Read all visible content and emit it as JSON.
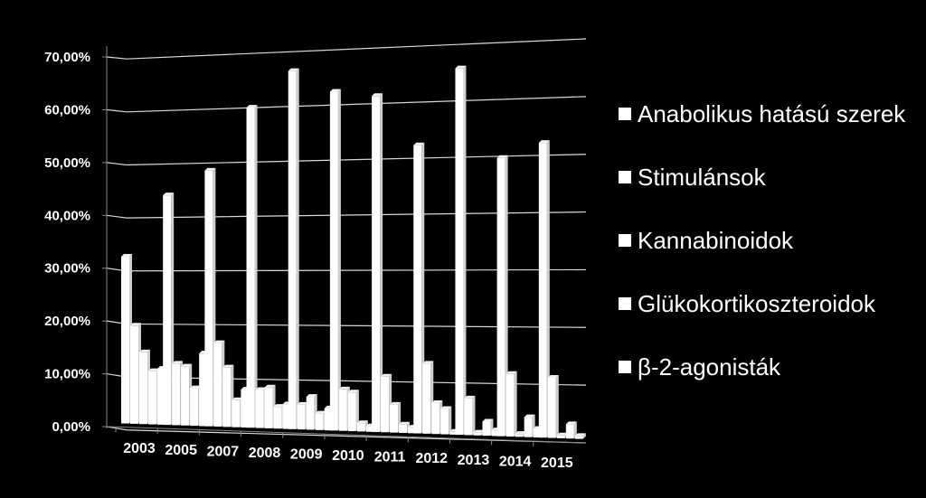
{
  "chart_data": {
    "type": "bar",
    "title": "",
    "xlabel": "",
    "ylabel": "",
    "ylim": [
      0,
      70
    ],
    "y_ticks": [
      "0,00%",
      "10,00%",
      "20,00%",
      "30,00%",
      "40,00%",
      "50,00%",
      "60,00%",
      "70,00%"
    ],
    "categories": [
      "2003",
      "2005",
      "2007",
      "2008",
      "2009",
      "2010",
      "2011",
      "2012",
      "2013",
      "2014",
      "2015"
    ],
    "grid": true,
    "legend_position": "right",
    "bar_color": "#ffffff",
    "background_color": "#000000",
    "series": [
      {
        "name": "Anabolikus hatású szerek",
        "values": [
          31.5,
          43.0,
          47.5,
          59.0,
          65.5,
          61.5,
          60.5,
          51.5,
          65.0,
          49.0,
          51.5
        ]
      },
      {
        "name": "Stimulánsok",
        "values": [
          18.5,
          11.5,
          15.5,
          7.0,
          4.5,
          7.5,
          10.0,
          12.5,
          6.5,
          11.0,
          10.5
        ]
      },
      {
        "name": "Kannabinoidok",
        "values": [
          13.5,
          11.0,
          11.0,
          7.5,
          6.0,
          7.0,
          5.0,
          5.5,
          0.5,
          0.5,
          0.5
        ]
      },
      {
        "name": "Glükokortikoszteroidok",
        "values": [
          10.0,
          7.0,
          5.0,
          4.0,
          3.0,
          1.5,
          1.5,
          4.5,
          2.5,
          3.5,
          2.5
        ]
      },
      {
        "name": "β-2-agonisták",
        "values": [
          10.5,
          13.5,
          7.0,
          4.5,
          4.0,
          1.0,
          1.0,
          0.5,
          1.0,
          1.5,
          0.5
        ]
      }
    ]
  }
}
